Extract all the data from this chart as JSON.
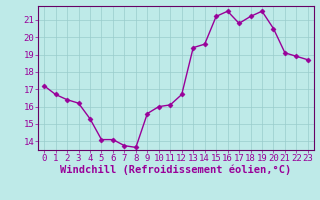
{
  "x": [
    0,
    1,
    2,
    3,
    4,
    5,
    6,
    7,
    8,
    9,
    10,
    11,
    12,
    13,
    14,
    15,
    16,
    17,
    18,
    19,
    20,
    21,
    22,
    23
  ],
  "y": [
    17.2,
    16.7,
    16.4,
    16.2,
    15.3,
    14.1,
    14.1,
    13.75,
    13.65,
    15.6,
    16.0,
    16.1,
    16.7,
    19.4,
    19.6,
    21.2,
    21.5,
    20.8,
    21.2,
    21.5,
    20.5,
    19.1,
    18.9,
    18.7
  ],
  "line_color": "#990099",
  "marker": "D",
  "marker_size": 2.5,
  "bg_color": "#beeae8",
  "grid_color": "#99cccc",
  "axis_color": "#660066",
  "tick_color": "#990099",
  "xlabel": "Windchill (Refroidissement éolien,°C)",
  "ylim": [
    13.5,
    21.8
  ],
  "yticks": [
    14,
    15,
    16,
    17,
    18,
    19,
    20,
    21
  ],
  "xticks": [
    0,
    1,
    2,
    3,
    4,
    5,
    6,
    7,
    8,
    9,
    10,
    11,
    12,
    13,
    14,
    15,
    16,
    17,
    18,
    19,
    20,
    21,
    22,
    23
  ],
  "xlabel_fontsize": 7.5,
  "tick_fontsize": 6.5,
  "label_font": "monospace"
}
